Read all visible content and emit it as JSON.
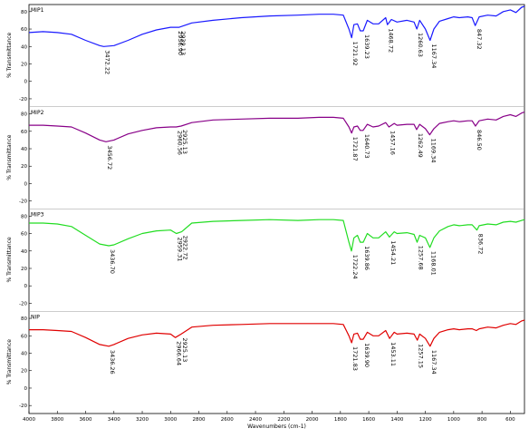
{
  "chart_data": {
    "type": "line",
    "xlabel": "Wavenumbers (cm-1)",
    "xlim": [
      4000,
      500
    ],
    "x_ticks": [
      "4000",
      "3800",
      "3600",
      "3400",
      "3200",
      "3000",
      "2800",
      "2600",
      "2400",
      "2200",
      "2000",
      "1800",
      "1600",
      "1400",
      "1200",
      "1000",
      "800",
      "600"
    ],
    "panels": [
      {
        "label": "MIP1",
        "ylabel": "% Transmittance",
        "color": "#1a1aff",
        "ylim": [
          -25,
          85
        ],
        "y_ticks": [
          "80",
          "60",
          "40",
          "20",
          "0",
          "-20"
        ],
        "series": [
          [
            4000,
            56
          ],
          [
            3900,
            57
          ],
          [
            3800,
            56
          ],
          [
            3700,
            54
          ],
          [
            3600,
            47
          ],
          [
            3500,
            41
          ],
          [
            3472,
            40
          ],
          [
            3400,
            41
          ],
          [
            3300,
            47
          ],
          [
            3200,
            54
          ],
          [
            3100,
            59
          ],
          [
            3000,
            62
          ],
          [
            2956,
            62
          ],
          [
            2939,
            62
          ],
          [
            2850,
            67
          ],
          [
            2700,
            70
          ],
          [
            2500,
            73
          ],
          [
            2300,
            75
          ],
          [
            2100,
            76
          ],
          [
            1950,
            77
          ],
          [
            1850,
            77
          ],
          [
            1780,
            76
          ],
          [
            1740,
            60
          ],
          [
            1721,
            50
          ],
          [
            1705,
            65
          ],
          [
            1680,
            66
          ],
          [
            1660,
            58
          ],
          [
            1639,
            58
          ],
          [
            1610,
            70
          ],
          [
            1570,
            66
          ],
          [
            1530,
            66
          ],
          [
            1480,
            73
          ],
          [
            1468,
            65
          ],
          [
            1440,
            71
          ],
          [
            1400,
            68
          ],
          [
            1330,
            70
          ],
          [
            1280,
            68
          ],
          [
            1260,
            60
          ],
          [
            1240,
            70
          ],
          [
            1200,
            60
          ],
          [
            1167,
            47
          ],
          [
            1140,
            60
          ],
          [
            1100,
            69
          ],
          [
            1040,
            72
          ],
          [
            1000,
            74
          ],
          [
            960,
            73
          ],
          [
            900,
            74
          ],
          [
            870,
            73
          ],
          [
            848,
            64
          ],
          [
            820,
            74
          ],
          [
            760,
            76
          ],
          [
            700,
            75
          ],
          [
            650,
            80
          ],
          [
            600,
            82
          ],
          [
            560,
            79
          ],
          [
            520,
            85
          ],
          [
            500,
            86
          ]
        ],
        "annotations": [
          {
            "text": "3472.22",
            "x": 3472
          },
          {
            "text": "2956.90",
            "x": 2956
          },
          {
            "text": "2939.13",
            "x": 2939
          },
          {
            "text": "1721.92",
            "x": 1721
          },
          {
            "text": "1639.23",
            "x": 1639
          },
          {
            "text": "1468.72",
            "x": 1468
          },
          {
            "text": "1260.63",
            "x": 1260
          },
          {
            "text": "1167.34",
            "x": 1167
          },
          {
            "text": "847.32",
            "x": 847
          }
        ]
      },
      {
        "label": "MIP2",
        "ylabel": "% Transmittance",
        "color": "#880088",
        "ylim": [
          -25,
          85
        ],
        "y_ticks": [
          "80",
          "60",
          "40",
          "20",
          "0",
          "-20"
        ],
        "series": [
          [
            4000,
            67
          ],
          [
            3900,
            67
          ],
          [
            3800,
            66
          ],
          [
            3700,
            65
          ],
          [
            3600,
            58
          ],
          [
            3500,
            50
          ],
          [
            3456,
            48
          ],
          [
            3400,
            50
          ],
          [
            3300,
            57
          ],
          [
            3200,
            61
          ],
          [
            3100,
            64
          ],
          [
            3000,
            65
          ],
          [
            2960,
            65
          ],
          [
            2925,
            66
          ],
          [
            2850,
            70
          ],
          [
            2700,
            73
          ],
          [
            2500,
            74
          ],
          [
            2300,
            75
          ],
          [
            2100,
            75
          ],
          [
            1950,
            76
          ],
          [
            1850,
            76
          ],
          [
            1780,
            75
          ],
          [
            1740,
            65
          ],
          [
            1721,
            58
          ],
          [
            1705,
            65
          ],
          [
            1680,
            66
          ],
          [
            1660,
            61
          ],
          [
            1640,
            61
          ],
          [
            1610,
            68
          ],
          [
            1570,
            65
          ],
          [
            1530,
            66
          ],
          [
            1480,
            70
          ],
          [
            1457,
            65
          ],
          [
            1420,
            69
          ],
          [
            1400,
            67
          ],
          [
            1330,
            68
          ],
          [
            1280,
            68
          ],
          [
            1262,
            62
          ],
          [
            1240,
            68
          ],
          [
            1200,
            63
          ],
          [
            1169,
            56
          ],
          [
            1140,
            63
          ],
          [
            1100,
            69
          ],
          [
            1040,
            71
          ],
          [
            1000,
            72
          ],
          [
            960,
            71
          ],
          [
            900,
            72
          ],
          [
            870,
            72
          ],
          [
            846,
            66
          ],
          [
            820,
            72
          ],
          [
            760,
            74
          ],
          [
            700,
            73
          ],
          [
            650,
            77
          ],
          [
            600,
            79
          ],
          [
            560,
            77
          ],
          [
            520,
            81
          ],
          [
            500,
            82
          ]
        ],
        "annotations": [
          {
            "text": "3456.72",
            "x": 3456
          },
          {
            "text": "2960.56",
            "x": 2960
          },
          {
            "text": "2925.13",
            "x": 2925
          },
          {
            "text": "1721.87",
            "x": 1721
          },
          {
            "text": "1640.73",
            "x": 1640
          },
          {
            "text": "1457.16",
            "x": 1457
          },
          {
            "text": "1262.49",
            "x": 1262
          },
          {
            "text": "1169.34",
            "x": 1169
          },
          {
            "text": "846.50",
            "x": 846
          }
        ]
      },
      {
        "label": "MIP3",
        "ylabel": "% Transmittance",
        "color": "#22dd22",
        "ylim": [
          -25,
          85
        ],
        "y_ticks": [
          "80",
          "60",
          "40",
          "20",
          "0",
          "-20"
        ],
        "series": [
          [
            4000,
            72
          ],
          [
            3900,
            72
          ],
          [
            3800,
            71
          ],
          [
            3700,
            68
          ],
          [
            3600,
            58
          ],
          [
            3500,
            48
          ],
          [
            3436,
            46
          ],
          [
            3400,
            47
          ],
          [
            3300,
            54
          ],
          [
            3200,
            60
          ],
          [
            3100,
            63
          ],
          [
            3000,
            64
          ],
          [
            2959,
            60
          ],
          [
            2922,
            62
          ],
          [
            2850,
            72
          ],
          [
            2700,
            74
          ],
          [
            2500,
            75
          ],
          [
            2300,
            76
          ],
          [
            2100,
            75
          ],
          [
            1950,
            76
          ],
          [
            1850,
            76
          ],
          [
            1780,
            75
          ],
          [
            1740,
            50
          ],
          [
            1722,
            40
          ],
          [
            1705,
            55
          ],
          [
            1680,
            58
          ],
          [
            1660,
            50
          ],
          [
            1639,
            50
          ],
          [
            1610,
            60
          ],
          [
            1570,
            55
          ],
          [
            1530,
            55
          ],
          [
            1480,
            62
          ],
          [
            1454,
            56
          ],
          [
            1420,
            62
          ],
          [
            1400,
            60
          ],
          [
            1330,
            61
          ],
          [
            1280,
            59
          ],
          [
            1258,
            50
          ],
          [
            1240,
            58
          ],
          [
            1200,
            55
          ],
          [
            1168,
            44
          ],
          [
            1140,
            55
          ],
          [
            1100,
            63
          ],
          [
            1040,
            68
          ],
          [
            1000,
            70
          ],
          [
            960,
            69
          ],
          [
            900,
            70
          ],
          [
            870,
            70
          ],
          [
            836,
            64
          ],
          [
            820,
            69
          ],
          [
            760,
            71
          ],
          [
            700,
            70
          ],
          [
            650,
            73
          ],
          [
            600,
            74
          ],
          [
            560,
            73
          ],
          [
            520,
            75
          ],
          [
            500,
            76
          ]
        ],
        "annotations": [
          {
            "text": "3436.70",
            "x": 3436
          },
          {
            "text": "2959.31",
            "x": 2959
          },
          {
            "text": "2922.72",
            "x": 2922
          },
          {
            "text": "1722.24",
            "x": 1722
          },
          {
            "text": "1639.86",
            "x": 1639
          },
          {
            "text": "1454.21",
            "x": 1454
          },
          {
            "text": "1257.68",
            "x": 1257
          },
          {
            "text": "1168.01",
            "x": 1168
          },
          {
            "text": "836.72",
            "x": 836
          }
        ]
      },
      {
        "label": "NIP",
        "ylabel": "% Transmittance",
        "color": "#e00000",
        "ylim": [
          -25,
          85
        ],
        "y_ticks": [
          "80",
          "60",
          "40",
          "20",
          "0",
          "-20"
        ],
        "series": [
          [
            4000,
            67
          ],
          [
            3900,
            67
          ],
          [
            3800,
            66
          ],
          [
            3700,
            65
          ],
          [
            3600,
            58
          ],
          [
            3500,
            50
          ],
          [
            3436,
            48
          ],
          [
            3400,
            50
          ],
          [
            3300,
            57
          ],
          [
            3200,
            61
          ],
          [
            3100,
            63
          ],
          [
            3000,
            62
          ],
          [
            2966,
            58
          ],
          [
            2925,
            62
          ],
          [
            2850,
            70
          ],
          [
            2700,
            72
          ],
          [
            2500,
            73
          ],
          [
            2300,
            74
          ],
          [
            2100,
            74
          ],
          [
            1950,
            74
          ],
          [
            1850,
            74
          ],
          [
            1780,
            73
          ],
          [
            1740,
            60
          ],
          [
            1721,
            52
          ],
          [
            1705,
            62
          ],
          [
            1680,
            63
          ],
          [
            1660,
            56
          ],
          [
            1639,
            56
          ],
          [
            1610,
            64
          ],
          [
            1570,
            60
          ],
          [
            1530,
            60
          ],
          [
            1480,
            66
          ],
          [
            1453,
            57
          ],
          [
            1420,
            64
          ],
          [
            1400,
            62
          ],
          [
            1330,
            63
          ],
          [
            1280,
            62
          ],
          [
            1257,
            55
          ],
          [
            1240,
            62
          ],
          [
            1200,
            57
          ],
          [
            1167,
            48
          ],
          [
            1140,
            57
          ],
          [
            1100,
            64
          ],
          [
            1040,
            67
          ],
          [
            1000,
            68
          ],
          [
            960,
            67
          ],
          [
            900,
            68
          ],
          [
            870,
            68
          ],
          [
            840,
            66
          ],
          [
            820,
            68
          ],
          [
            760,
            70
          ],
          [
            700,
            69
          ],
          [
            650,
            72
          ],
          [
            600,
            74
          ],
          [
            560,
            73
          ],
          [
            520,
            77
          ],
          [
            500,
            78
          ]
        ],
        "annotations": [
          {
            "text": "3436.26",
            "x": 3436
          },
          {
            "text": "2966.64",
            "x": 2966
          },
          {
            "text": "2925.13",
            "x": 2925
          },
          {
            "text": "1721.83",
            "x": 1721
          },
          {
            "text": "1639.90",
            "x": 1639
          },
          {
            "text": "1453.11",
            "x": 1453
          },
          {
            "text": "1257.15",
            "x": 1257
          },
          {
            "text": "1167.34",
            "x": 1167
          }
        ]
      }
    ]
  }
}
